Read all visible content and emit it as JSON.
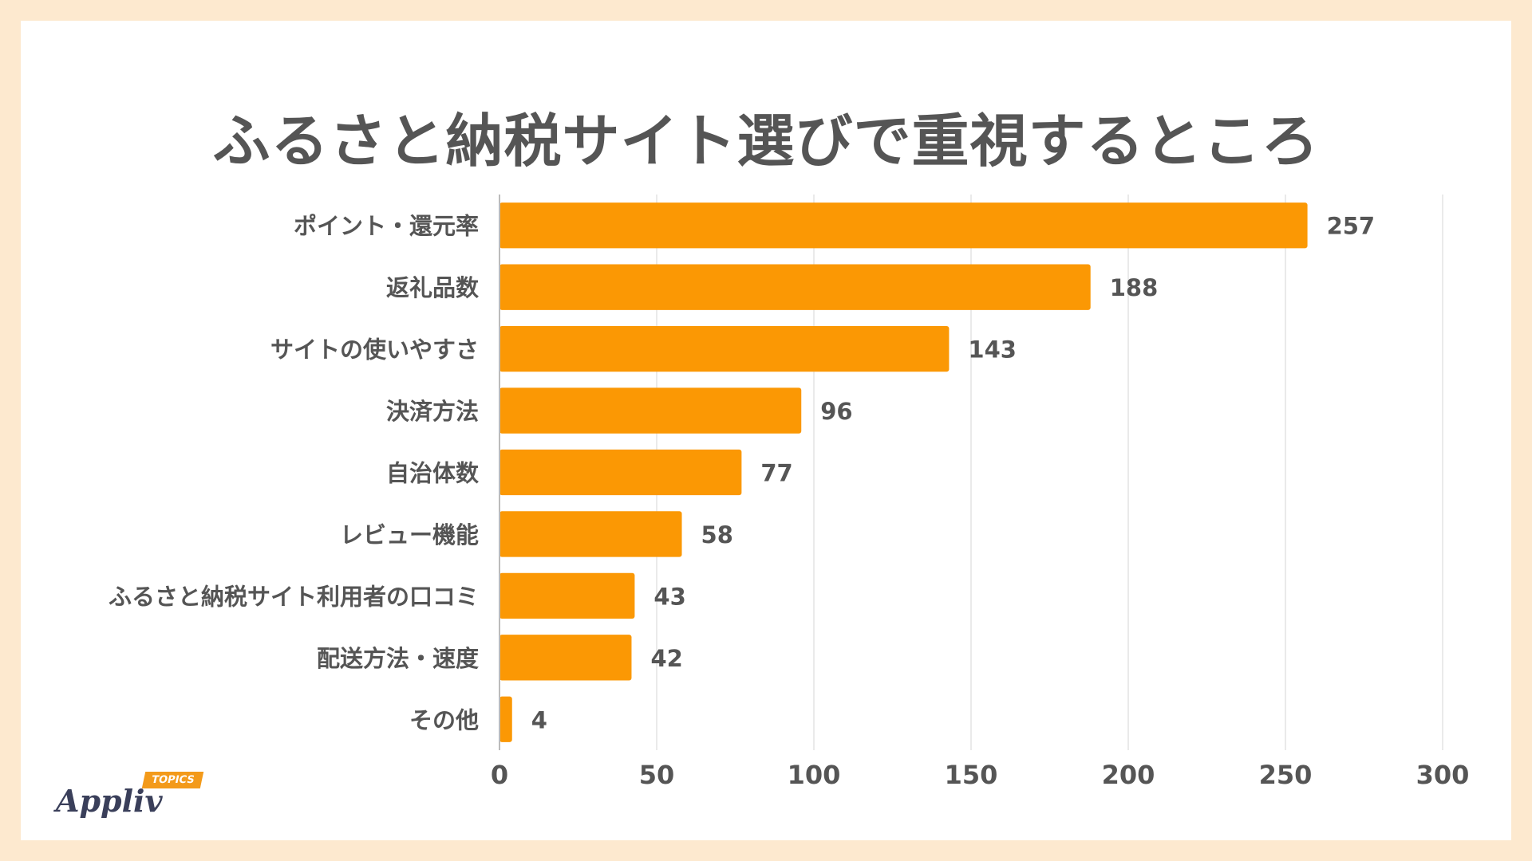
{
  "title": "ふるさと納税サイト選びで重視するところ",
  "chart_data": {
    "type": "bar",
    "orientation": "horizontal",
    "title": "ふるさと納税サイト選びで重視するところ",
    "categories": [
      "ポイント・還元率",
      "返礼品数",
      "サイトの使いやすさ",
      "決済方法",
      "自治体数",
      "レビュー機能",
      "ふるさと納税サイト利用者の口コミ",
      "配送方法・速度",
      "その他"
    ],
    "values": [
      257,
      188,
      143,
      96,
      77,
      58,
      43,
      42,
      4
    ],
    "xlim": [
      0,
      300
    ],
    "xticks": [
      0,
      50,
      100,
      150,
      200,
      250,
      300
    ],
    "xlabel": "",
    "ylabel": "",
    "grid": true,
    "bar_color": "#fb9804"
  },
  "logo": {
    "name": "Appliv",
    "tag": "TOPICS"
  }
}
